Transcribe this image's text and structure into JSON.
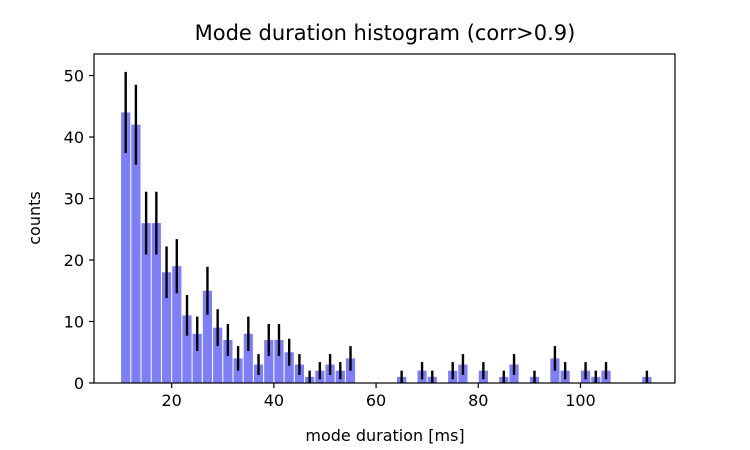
{
  "chart_data": {
    "type": "bar",
    "title": "Mode duration histogram (corr>0.9)",
    "xlabel": "mode duration [ms]",
    "ylabel": "counts",
    "xlim": [
      4.8,
      118.5
    ],
    "ylim": [
      0,
      53.5
    ],
    "xticks": [
      20,
      40,
      60,
      80,
      100
    ],
    "yticks": [
      0,
      10,
      20,
      30,
      40,
      50
    ],
    "bin_width": 2,
    "bar_color": "#7f7ff5",
    "error_color": "#000000",
    "grid": false,
    "legend": "none",
    "x": [
      11,
      13,
      15,
      17,
      19,
      21,
      23,
      25,
      27,
      29,
      31,
      33,
      35,
      37,
      39,
      41,
      43,
      45,
      47,
      49,
      51,
      53,
      55,
      57,
      65,
      69,
      71,
      75,
      77,
      81,
      85,
      87,
      91,
      95,
      97,
      101,
      103,
      105,
      113
    ],
    "values": [
      44,
      42,
      26,
      26,
      18,
      19,
      11,
      8,
      15,
      9,
      7,
      4,
      8,
      3,
      7,
      7,
      5,
      3,
      1,
      2,
      3,
      2,
      4,
      0,
      1,
      2,
      1,
      2,
      3,
      2,
      1,
      3,
      1,
      4,
      2,
      2,
      1,
      2,
      1
    ],
    "errors": [
      6.6,
      6.5,
      5.1,
      5.1,
      4.2,
      4.4,
      3.3,
      2.8,
      3.9,
      3.0,
      2.6,
      2.0,
      2.8,
      1.7,
      2.6,
      2.6,
      2.2,
      1.7,
      1.0,
      1.4,
      1.7,
      1.4,
      2.0,
      0,
      1.0,
      1.4,
      1.0,
      1.4,
      1.7,
      1.4,
      1.0,
      1.7,
      1.0,
      2.0,
      1.4,
      1.4,
      1.0,
      1.4,
      1.0
    ]
  }
}
